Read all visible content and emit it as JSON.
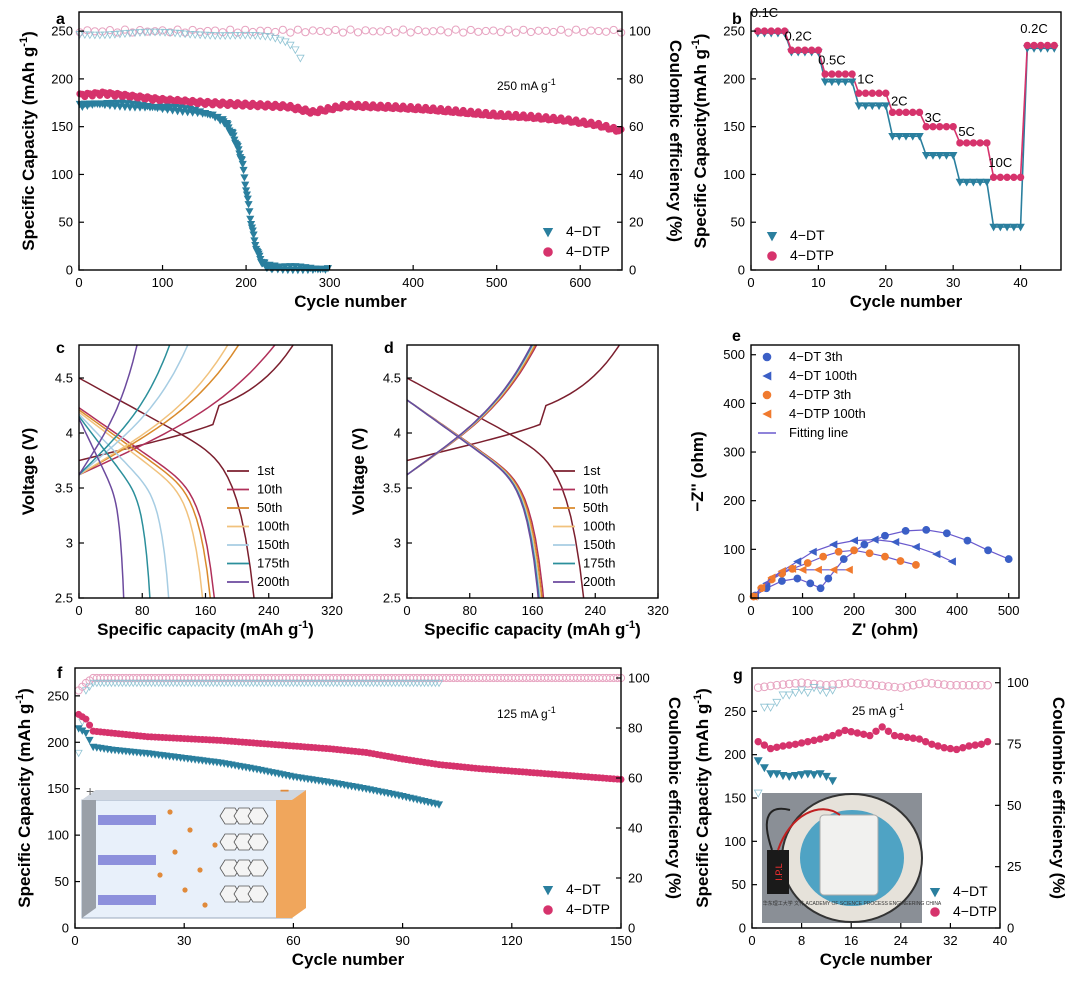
{
  "figure": "battery-cycling-figure",
  "colors": {
    "dt": "#2a7f9e",
    "dtp": "#d6336c",
    "dtp_ce": "#e7a3c0",
    "dt_ce": "#8fc3d3",
    "axis": "#000000",
    "rate_steps": [
      "#2a7f9e",
      "#d6336c"
    ],
    "c_curves": [
      "#7b1f2e",
      "#b0305a",
      "#d98a2b",
      "#f1c27d",
      "#a7cde3",
      "#2b8f9b",
      "#6c4a9e"
    ],
    "e_series": [
      "#3b5fc6",
      "#3b5fc6",
      "#f07a2e",
      "#f07a2e"
    ],
    "fit": "#6a5acd"
  },
  "chart_data": [
    {
      "panel": "a",
      "type": "scatter",
      "xlabel": "Cycle number",
      "ylabel": "Specific Capacity (mAh g",
      "ylabel_sup": "-1",
      "y2label": "Coulombic efficiency (%)",
      "xlim": [
        0,
        650
      ],
      "ylim": [
        0,
        270
      ],
      "y2lim": [
        0,
        108
      ],
      "xticks": [
        0,
        100,
        200,
        300,
        400,
        500,
        600
      ],
      "yticks": [
        0,
        50,
        100,
        150,
        200,
        250
      ],
      "y2ticks": [
        0,
        20,
        40,
        60,
        80,
        100
      ],
      "annotation": "250 mA g",
      "annotation_sup": "-1",
      "legend": [
        "4−DT",
        "4−DTP"
      ],
      "series": [
        {
          "name": "4−DT capacity",
          "x": [
            1,
            20,
            50,
            80,
            110,
            140,
            160,
            175,
            185,
            195,
            200,
            205,
            210,
            215,
            220,
            225,
            230,
            240,
            260,
            280,
            300
          ],
          "y": [
            172,
            174,
            173,
            171,
            169,
            166,
            162,
            155,
            140,
            115,
            85,
            55,
            30,
            15,
            7,
            4,
            3,
            2,
            2,
            1,
            1
          ]
        },
        {
          "name": "4−DTP capacity",
          "x": [
            1,
            30,
            60,
            100,
            150,
            200,
            250,
            280,
            320,
            380,
            420,
            460,
            500,
            540,
            580,
            620,
            650
          ],
          "y": [
            183,
            185,
            182,
            178,
            175,
            173,
            171,
            165,
            172,
            170,
            168,
            165,
            162,
            160,
            157,
            152,
            145
          ]
        },
        {
          "name": "4−DT CE",
          "x": [
            1,
            50,
            100,
            150,
            200,
            230,
            250,
            260,
            270
          ],
          "y": [
            99,
            99,
            99,
            99,
            98,
            97,
            95,
            92,
            86
          ]
        },
        {
          "name": "4−DTP CE",
          "x": [
            1,
            100,
            200,
            300,
            400,
            500,
            600,
            650
          ],
          "y": [
            100,
            100,
            100,
            100,
            100,
            100,
            100,
            100
          ]
        }
      ]
    },
    {
      "panel": "b",
      "type": "scatter",
      "xlabel": "Cycle number",
      "ylabel": "Specific Capacity(mAh g",
      "ylabel_sup": "-1",
      "xlim": [
        0,
        46
      ],
      "ylim": [
        0,
        270
      ],
      "xticks": [
        0,
        10,
        20,
        30,
        40
      ],
      "yticks": [
        0,
        50,
        100,
        150,
        200,
        250
      ],
      "legend": [
        "4−DT",
        "4−DTP"
      ],
      "rate_labels": [
        {
          "text": "0.1C",
          "x": 2,
          "y": 265
        },
        {
          "text": "0.2C",
          "x": 7,
          "y": 240
        },
        {
          "text": "0.5C",
          "x": 12,
          "y": 215
        },
        {
          "text": "1C",
          "x": 17,
          "y": 195
        },
        {
          "text": "2C",
          "x": 22,
          "y": 172
        },
        {
          "text": "3C",
          "x": 27,
          "y": 155
        },
        {
          "text": "5C",
          "x": 32,
          "y": 140
        },
        {
          "text": "10C",
          "x": 37,
          "y": 108
        },
        {
          "text": "0.2C",
          "x": 42,
          "y": 248
        }
      ],
      "steps": [
        {
          "from": 0,
          "to": 5,
          "dt": 248,
          "dtp": 250
        },
        {
          "from": 5,
          "to": 10,
          "dt": 228,
          "dtp": 230
        },
        {
          "from": 10,
          "to": 15,
          "dt": 197,
          "dtp": 205
        },
        {
          "from": 15,
          "to": 20,
          "dt": 172,
          "dtp": 185
        },
        {
          "from": 20,
          "to": 25,
          "dt": 140,
          "dtp": 165
        },
        {
          "from": 25,
          "to": 30,
          "dt": 120,
          "dtp": 150
        },
        {
          "from": 30,
          "to": 35,
          "dt": 92,
          "dtp": 133
        },
        {
          "from": 35,
          "to": 40,
          "dt": 45,
          "dtp": 97
        },
        {
          "from": 40,
          "to": 45,
          "dt": 232,
          "dtp": 235
        }
      ]
    },
    {
      "panel": "c",
      "type": "line",
      "xlabel": "Specific capacity (mAh g",
      "xlabel_sup": "-1",
      "ylabel": "Voltage (V)",
      "xlim": [
        0,
        320
      ],
      "ylim": [
        2.5,
        4.8
      ],
      "xticks": [
        0,
        80,
        160,
        240,
        320
      ],
      "yticks": [
        2.5,
        3.0,
        3.5,
        4.0,
        4.5
      ],
      "legend": [
        "1st",
        "10th",
        "50th",
        "100th",
        "150th",
        "175th",
        "200th"
      ],
      "charge_end": [
        308,
        270,
        220,
        205,
        150,
        125,
        80
      ],
      "discharge_end": [
        228,
        180,
        175,
        165,
        120,
        95,
        60
      ]
    },
    {
      "panel": "d",
      "type": "line",
      "xlabel": "Specific capacity (mAh g",
      "xlabel_sup": "-1",
      "ylabel": "Voltage (V)",
      "xlim": [
        0,
        320
      ],
      "ylim": [
        2.5,
        4.8
      ],
      "xticks": [
        0,
        80,
        160,
        240,
        320
      ],
      "yticks": [
        2.5,
        3.0,
        3.5,
        4.0,
        4.5
      ],
      "legend": [
        "1st",
        "10th",
        "50th",
        "100th",
        "150th",
        "175th",
        "200th"
      ],
      "charge_end": [
        308,
        180,
        178,
        176,
        175,
        174,
        173
      ],
      "discharge_end": [
        232,
        182,
        180,
        178,
        177,
        176,
        175
      ]
    },
    {
      "panel": "e",
      "type": "scatter",
      "xlabel": "Z' (ohm)",
      "ylabel": "−Z'' (ohm)",
      "xlim": [
        0,
        520
      ],
      "ylim": [
        0,
        520
      ],
      "xticks": [
        0,
        100,
        200,
        300,
        400,
        500
      ],
      "yticks": [
        0,
        100,
        200,
        300,
        400,
        500
      ],
      "legend": [
        "4−DT 3th",
        "4−DT 100th",
        "4−DTP 3th",
        "4−DTP 100th",
        "Fitting line"
      ],
      "series": [
        {
          "name": "4−DT 3th",
          "x": [
            8,
            30,
            60,
            90,
            115,
            135,
            150,
            180,
            220,
            260,
            300,
            340,
            380,
            420,
            460,
            500
          ],
          "y": [
            5,
            20,
            35,
            40,
            30,
            20,
            40,
            80,
            110,
            128,
            138,
            140,
            133,
            118,
            98,
            80
          ]
        },
        {
          "name": "4−DT 100th",
          "x": [
            8,
            30,
            60,
            90,
            120,
            160,
            200,
            240,
            280,
            320,
            360,
            390
          ],
          "y": [
            5,
            30,
            55,
            75,
            95,
            110,
            118,
            120,
            115,
            105,
            90,
            75
          ]
        },
        {
          "name": "4−DTP 3th",
          "x": [
            5,
            20,
            40,
            60,
            80,
            110,
            140,
            170,
            200,
            230,
            260,
            290,
            320
          ],
          "y": [
            3,
            20,
            38,
            50,
            60,
            72,
            85,
            95,
            98,
            92,
            85,
            76,
            68
          ]
        },
        {
          "name": "4−DTP 100th",
          "x": [
            5,
            20,
            40,
            60,
            80,
            100,
            130,
            160,
            190
          ],
          "y": [
            3,
            22,
            42,
            55,
            60,
            58,
            58,
            58,
            58
          ]
        }
      ]
    },
    {
      "panel": "f",
      "type": "scatter",
      "xlabel": "Cycle number",
      "ylabel": "Specific Capacity (mAh g",
      "ylabel_sup": "-1",
      "y2label": "Coulombic efficiency (%)",
      "xlim": [
        0,
        150
      ],
      "ylim": [
        0,
        280
      ],
      "y2lim": [
        0,
        104
      ],
      "xticks": [
        0,
        30,
        60,
        90,
        120,
        150
      ],
      "yticks": [
        0,
        50,
        100,
        150,
        200,
        250
      ],
      "y2ticks": [
        0,
        20,
        40,
        60,
        80,
        100
      ],
      "annotation": "125 mA g",
      "annotation_sup": "-1",
      "legend": [
        "4−DT",
        "4−DTP"
      ],
      "series": [
        {
          "name": "4−DT capacity",
          "x": [
            1,
            3,
            5,
            10,
            20,
            30,
            40,
            50,
            60,
            70,
            80,
            90,
            100
          ],
          "y": [
            215,
            210,
            195,
            192,
            188,
            183,
            178,
            171,
            163,
            157,
            150,
            142,
            133
          ]
        },
        {
          "name": "4−DTP capacity",
          "x": [
            1,
            3,
            5,
            10,
            20,
            30,
            40,
            50,
            60,
            70,
            80,
            90,
            100,
            110,
            120,
            130,
            140,
            150
          ],
          "y": [
            230,
            225,
            212,
            210,
            206,
            204,
            202,
            199,
            196,
            193,
            189,
            182,
            176,
            172,
            169,
            166,
            163,
            160
          ]
        },
        {
          "name": "4−DT CE",
          "x": [
            1,
            3,
            5,
            10,
            30,
            60,
            90,
            100
          ],
          "y": [
            70,
            95,
            98,
            98,
            98,
            98,
            98,
            98
          ]
        },
        {
          "name": "4−DTP CE",
          "x": [
            1,
            3,
            5,
            10,
            50,
            100,
            150
          ],
          "y": [
            95,
            98,
            100,
            100,
            100,
            100,
            100
          ]
        }
      ]
    },
    {
      "panel": "g",
      "type": "scatter",
      "xlabel": "Cycle number",
      "ylabel": "Specific Capacity (mAh g",
      "ylabel_sup": "-1",
      "y2label": "Coulombic efficiency (%)",
      "xlim": [
        0,
        40
      ],
      "ylim": [
        0,
        300
      ],
      "y2lim": [
        0,
        106
      ],
      "xticks": [
        0,
        8,
        16,
        24,
        32,
        40
      ],
      "yticks": [
        0,
        50,
        100,
        150,
        200,
        250
      ],
      "y2ticks": [
        0,
        25,
        50,
        75,
        100
      ],
      "annotation": "25 mA g",
      "annotation_sup": "-1",
      "legend": [
        "4−DT",
        "4−DTP"
      ],
      "series": [
        {
          "name": "4−DT capacity",
          "x": [
            1,
            2,
            3,
            4,
            5,
            6,
            7,
            8,
            9,
            10,
            11,
            12,
            13
          ],
          "y": [
            193,
            185,
            178,
            178,
            176,
            175,
            176,
            177,
            178,
            177,
            178,
            175,
            170
          ]
        },
        {
          "name": "4−DTP capacity",
          "x": [
            1,
            3,
            5,
            7,
            9,
            11,
            13,
            15,
            17,
            19,
            21,
            23,
            25,
            27,
            29,
            31,
            33,
            35,
            37,
            38
          ],
          "y": [
            215,
            207,
            210,
            212,
            215,
            218,
            222,
            228,
            225,
            222,
            232,
            222,
            220,
            218,
            212,
            208,
            206,
            210,
            212,
            215
          ]
        },
        {
          "name": "4−DT CE",
          "x": [
            1,
            2,
            3,
            4,
            5,
            6,
            7,
            8,
            9,
            10,
            11,
            12,
            13
          ],
          "y": [
            55,
            90,
            90,
            92,
            95,
            95,
            96,
            97,
            96,
            98,
            97,
            96,
            97
          ]
        },
        {
          "name": "4−DTP CE",
          "x": [
            1,
            4,
            8,
            12,
            16,
            20,
            24,
            28,
            32,
            36,
            38
          ],
          "y": [
            98,
            99,
            100,
            99,
            100,
            99,
            98,
            100,
            99,
            99,
            99
          ]
        }
      ]
    }
  ],
  "panel_letters": [
    "a",
    "b",
    "c",
    "d",
    "e",
    "f",
    "g"
  ],
  "insets": {
    "f_schematic": {
      "plus": "+",
      "minus": "−"
    },
    "g_photo": {
      "display_text": "I.P.L",
      "seal_text": "华东理工大学 文件 ACADEMY OF SCIENCE PROCESS ENGINEERING CHINA"
    }
  }
}
